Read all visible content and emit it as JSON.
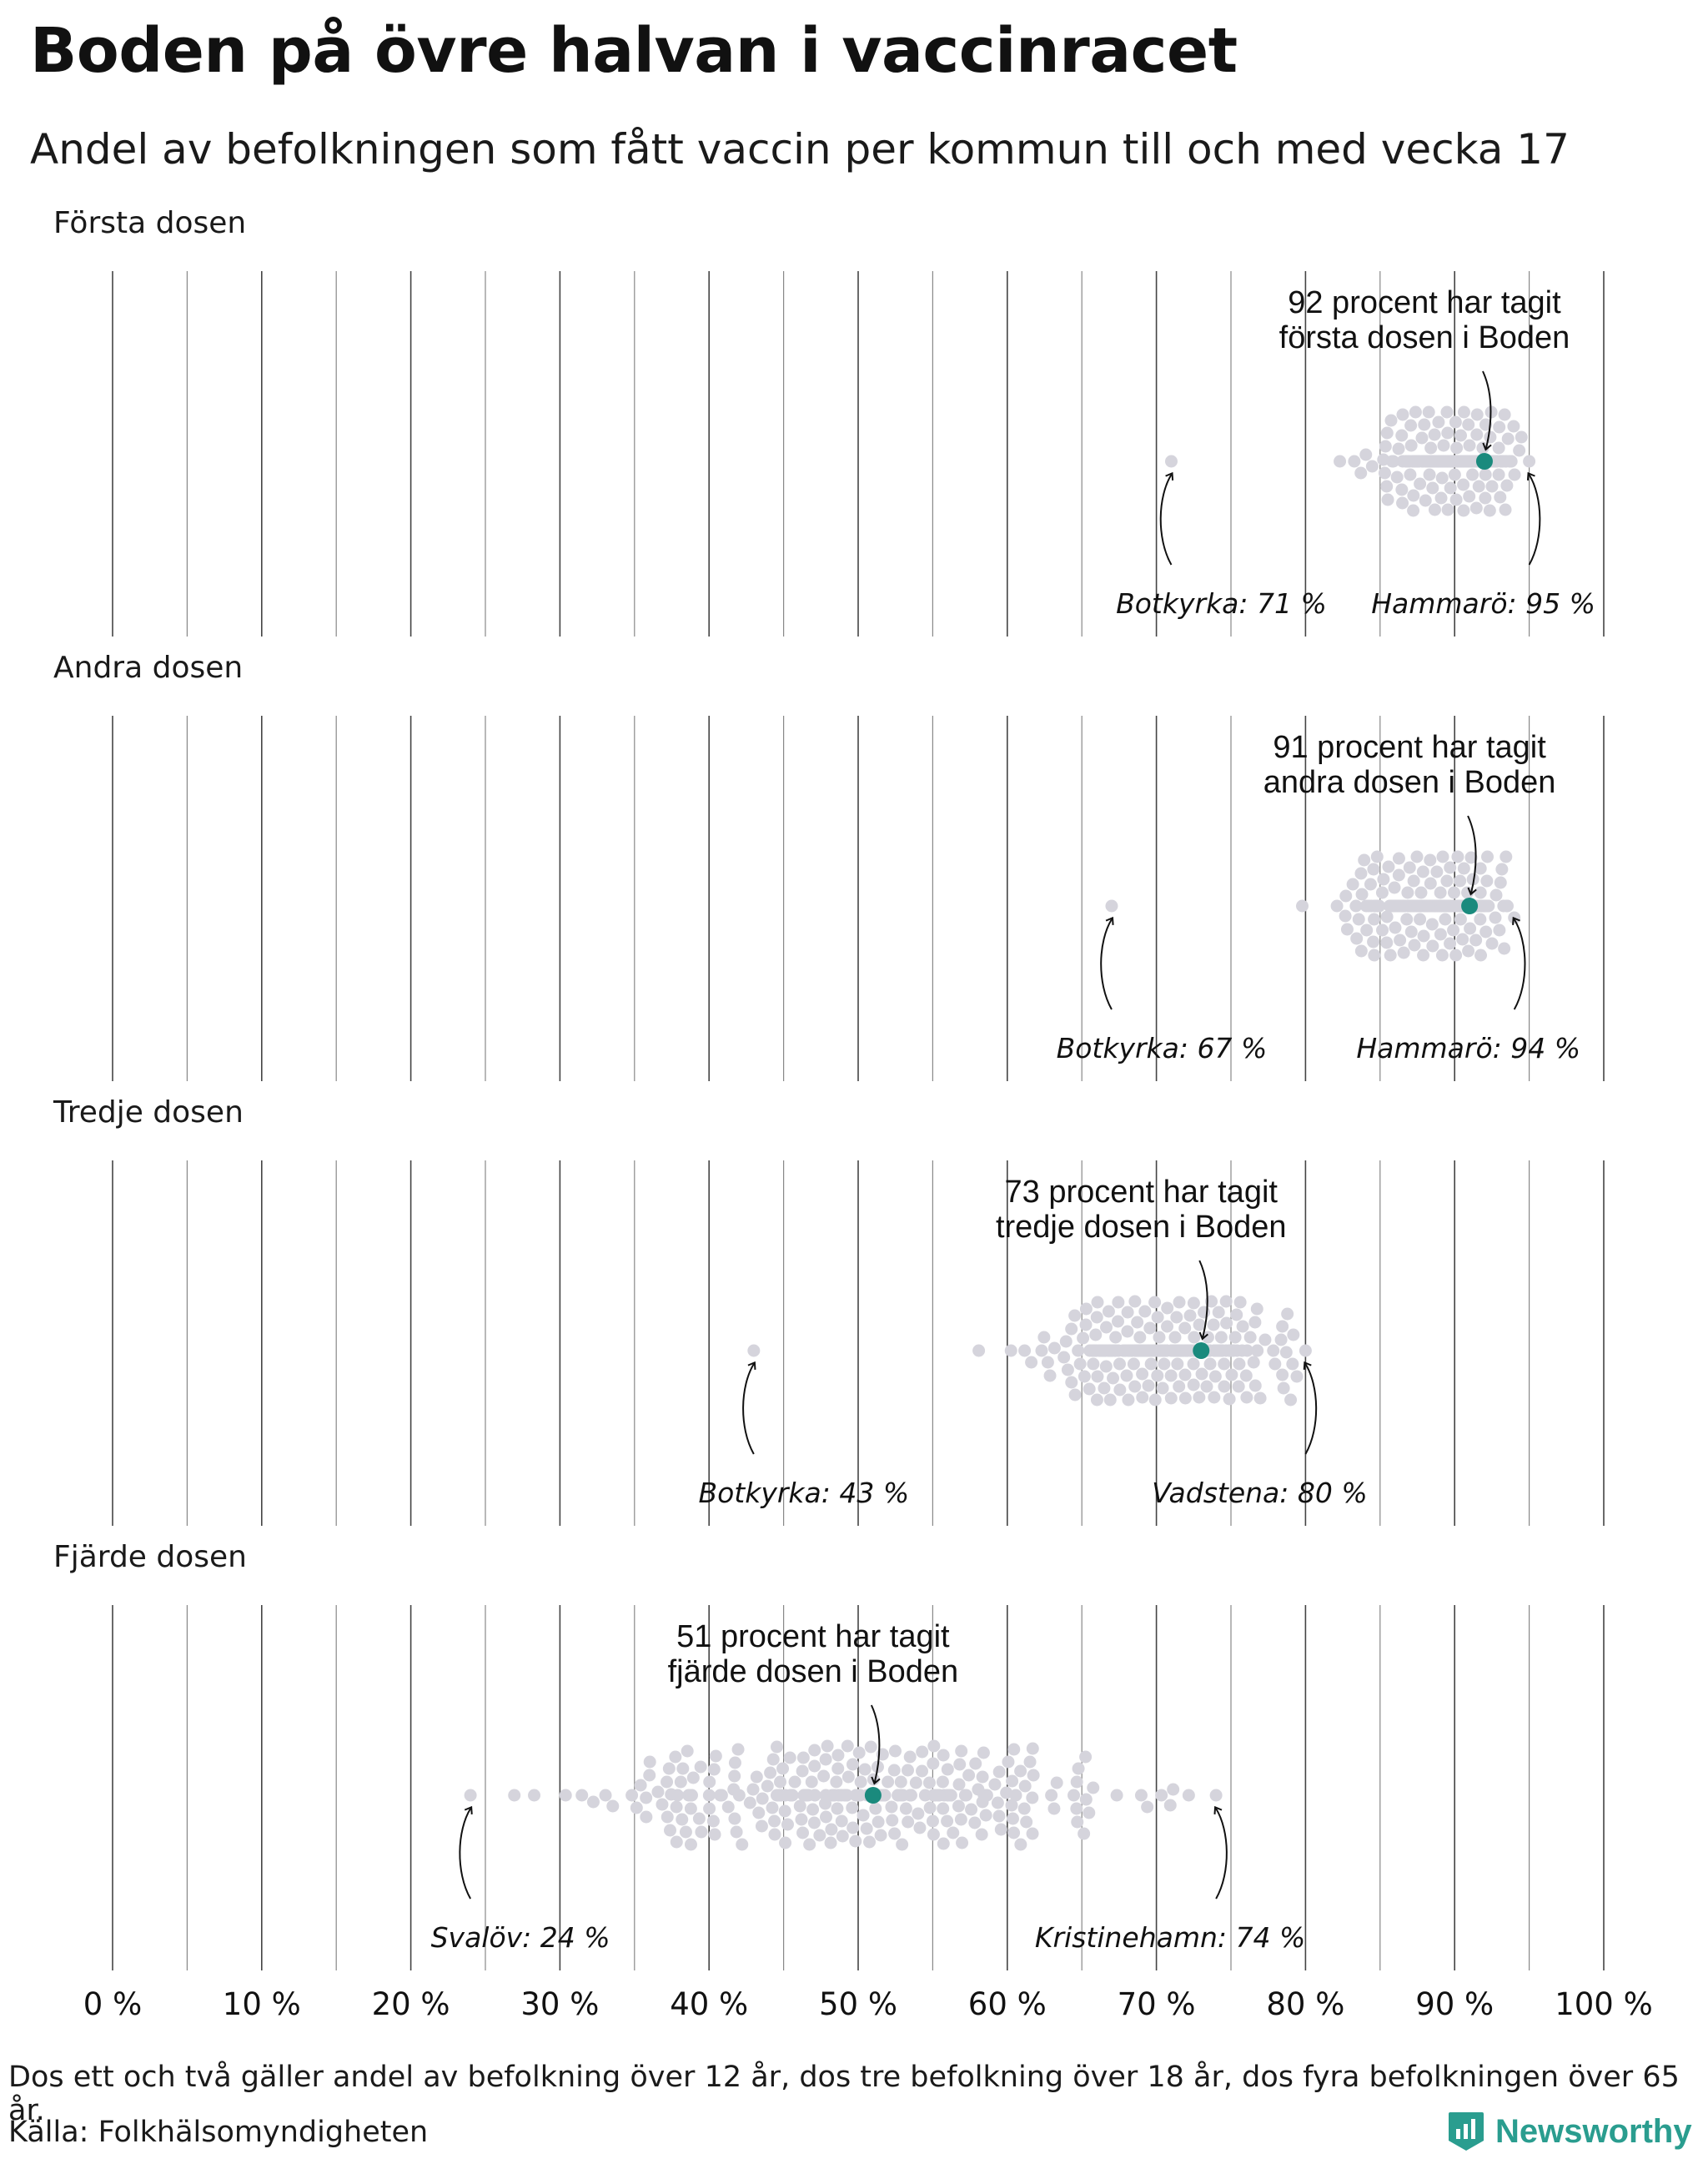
{
  "title": "Boden på övre halvan i vaccinracet",
  "subtitle": "Andel av befolkningen som fått vaccin per kommun till och med vecka 17",
  "footnote": "Dos ett och två gäller andel av befolkning över 12 år, dos tre befolkning över 18 år, dos fyra befolkningen över 65 år.",
  "source": "Källa: Folkhälsomyndigheten",
  "brand": "Newsworthy",
  "colors": {
    "highlight": "#1a8a7d",
    "dot": "#d5d4dc",
    "grid": "#3a3a3a",
    "brand": "#2a9d8f"
  },
  "chart_data": {
    "type": "scatter",
    "subtype": "beeswarm",
    "title": "Boden på övre halvan i vaccinracet",
    "xlabel": "",
    "ylabel": "",
    "xlim": [
      0,
      100
    ],
    "x_ticks": [
      0,
      10,
      20,
      30,
      40,
      50,
      60,
      70,
      80,
      90,
      100
    ],
    "x_tick_labels": [
      "0 %",
      "10 %",
      "20 %",
      "30 %",
      "40 %",
      "50 %",
      "60 %",
      "70 %",
      "80 %",
      "90 %",
      "100 %"
    ],
    "grid": true,
    "panels": [
      {
        "name": "Första dosen",
        "highlight": {
          "name": "Boden",
          "value": 92,
          "label_line1": "92 procent har tagit",
          "label_line2": "första dosen i Boden"
        },
        "low": {
          "name": "Botkyrka",
          "value": 71,
          "label": "Botkyrka: 71 %"
        },
        "high": {
          "name": "Hammarö",
          "value": 95,
          "label": "Hammarö: 95 %"
        },
        "distribution": {
          "min": 71,
          "max": 95,
          "center": 90,
          "spread": 2.2,
          "count": 290
        }
      },
      {
        "name": "Andra dosen",
        "highlight": {
          "name": "Boden",
          "value": 91,
          "label_line1": "91 procent har tagit",
          "label_line2": "andra dosen i Boden"
        },
        "low": {
          "name": "Botkyrka",
          "value": 67,
          "label": "Botkyrka: 67 %"
        },
        "high": {
          "name": "Hammarö",
          "value": 94,
          "label": "Hammarö: 94 %"
        },
        "distribution": {
          "min": 67,
          "max": 94,
          "center": 89,
          "spread": 2.6,
          "count": 290
        }
      },
      {
        "name": "Tredje dosen",
        "highlight": {
          "name": "Boden",
          "value": 73,
          "label_line1": "73 procent har tagit",
          "label_line2": "tredje dosen i Boden"
        },
        "low": {
          "name": "Botkyrka",
          "value": 43,
          "label": "Botkyrka: 43 %"
        },
        "high": {
          "name": "Vadstena",
          "value": 80,
          "label": "Vadstena: 80 %"
        },
        "distribution": {
          "min": 43,
          "max": 80,
          "center": 71,
          "spread": 4.0,
          "count": 290
        }
      },
      {
        "name": "Fjärde dosen",
        "highlight": {
          "name": "Boden",
          "value": 51,
          "label_line1": "51 procent har tagit",
          "label_line2": "fjärde dosen i Boden"
        },
        "low": {
          "name": "Svalöv",
          "value": 24,
          "label": "Svalöv: 24 %"
        },
        "high": {
          "name": "Kristinehamn",
          "value": 74,
          "label": "Kristinehamn: 74 %"
        },
        "distribution": {
          "min": 24,
          "max": 74,
          "center": 50,
          "spread": 9.0,
          "count": 290
        }
      }
    ]
  }
}
